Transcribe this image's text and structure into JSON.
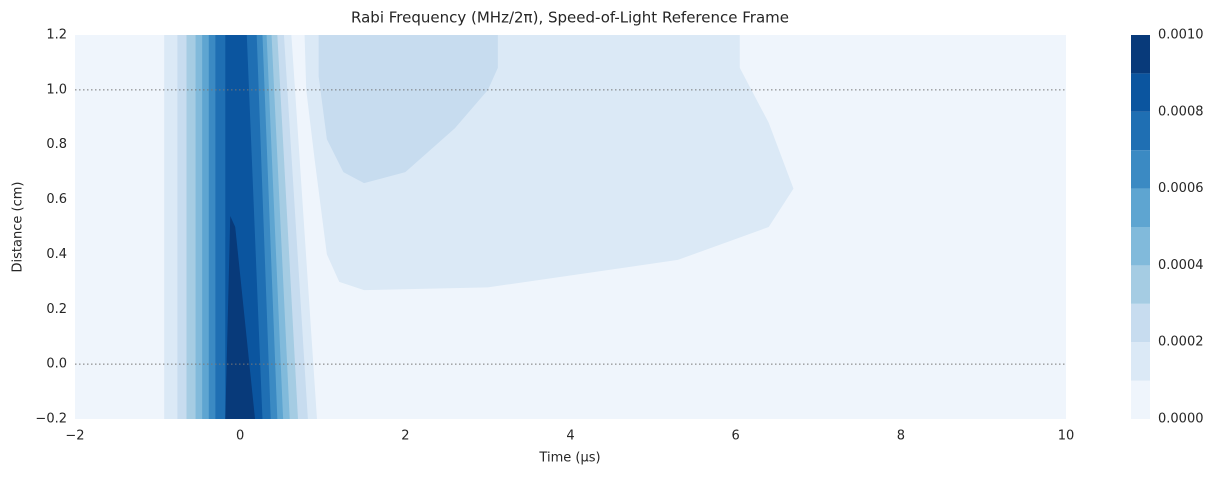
{
  "chart_data": {
    "type": "contourf",
    "title": "Rabi Frequency (MHz/2π), Speed-of-Light Reference Frame",
    "xlabel": "Time (μs)",
    "ylabel": "Distance (cm)",
    "xlim": [
      -2,
      10
    ],
    "ylim": [
      -0.2,
      1.2
    ],
    "xticks": [
      {
        "value": -2,
        "label": "−2"
      },
      0,
      2,
      4,
      6,
      8,
      10
    ],
    "yticks": [
      {
        "value": -0.2,
        "label": "−0.2"
      },
      {
        "value": 0,
        "label": "0.0"
      },
      {
        "value": 0.2,
        "label": "0.2"
      },
      {
        "value": 0.4,
        "label": "0.4"
      },
      {
        "value": 0.6,
        "label": "0.6"
      },
      {
        "value": 0.8,
        "label": "0.8"
      },
      {
        "value": 1.0,
        "label": "1.0"
      },
      {
        "value": 1.2,
        "label": "1.2"
      }
    ],
    "hlines": [
      0,
      1.0
    ],
    "levels": [
      0,
      0.0001,
      0.0002,
      0.0003,
      0.0004,
      0.0005,
      0.0006,
      0.0007,
      0.0008,
      0.0009,
      0.001
    ],
    "colors": [
      "#eff5fc",
      "#dbe9f6",
      "#c7dcef",
      "#a5cce3",
      "#81badb",
      "#5ea5d1",
      "#3b8ac3",
      "#1f6fb3",
      "#0b559f",
      "#083a7a"
    ],
    "colorbar_ticks": [
      {
        "value": 0,
        "label": "0.0000"
      },
      {
        "value": 0.0002,
        "label": "0.0002"
      },
      {
        "value": 0.0004,
        "label": "0.0004"
      },
      {
        "value": 0.0006,
        "label": "0.0006"
      },
      {
        "value": 0.0008,
        "label": "0.0008"
      },
      {
        "value": 0.001,
        "label": "0.0010"
      }
    ],
    "regions": [
      {
        "level": 0.0001,
        "points": [
          [
            0.78,
            1.2
          ],
          [
            0.8,
            1.0
          ],
          [
            0.9,
            0.75
          ],
          [
            1.05,
            0.4
          ],
          [
            1.2,
            0.3
          ],
          [
            1.5,
            0.27
          ],
          [
            3.0,
            0.28
          ],
          [
            5.3,
            0.38
          ],
          [
            6.4,
            0.5
          ],
          [
            6.7,
            0.64
          ],
          [
            6.4,
            0.88
          ],
          [
            6.05,
            1.08
          ],
          [
            6.05,
            1.2
          ]
        ]
      },
      {
        "level": 0.0002,
        "points": [
          [
            0.95,
            1.2
          ],
          [
            0.95,
            1.05
          ],
          [
            1.05,
            0.82
          ],
          [
            1.25,
            0.7
          ],
          [
            1.5,
            0.66
          ],
          [
            2.0,
            0.7
          ],
          [
            2.6,
            0.86
          ],
          [
            3.0,
            1.0
          ],
          [
            3.12,
            1.08
          ],
          [
            3.12,
            1.2
          ]
        ]
      },
      {
        "level": 0.0001,
        "points": [
          [
            -0.92,
            -0.2
          ],
          [
            -0.92,
            1.2
          ],
          [
            0.62,
            1.2
          ],
          [
            0.93,
            -0.2
          ]
        ]
      },
      {
        "level": 0.0002,
        "points": [
          [
            -0.76,
            -0.2
          ],
          [
            -0.76,
            1.2
          ],
          [
            0.53,
            1.2
          ],
          [
            0.82,
            -0.2
          ]
        ]
      },
      {
        "level": 0.0003,
        "points": [
          [
            -0.65,
            -0.2
          ],
          [
            -0.65,
            1.2
          ],
          [
            0.45,
            1.2
          ],
          [
            0.7,
            -0.2
          ]
        ]
      },
      {
        "level": 0.0004,
        "points": [
          [
            -0.54,
            -0.2
          ],
          [
            -0.54,
            1.2
          ],
          [
            0.38,
            1.2
          ],
          [
            0.6,
            -0.2
          ]
        ]
      },
      {
        "level": 0.0005,
        "points": [
          [
            -0.46,
            -0.2
          ],
          [
            -0.46,
            1.2
          ],
          [
            0.32,
            1.2
          ],
          [
            0.52,
            -0.2
          ]
        ]
      },
      {
        "level": 0.0006,
        "points": [
          [
            -0.38,
            -0.2
          ],
          [
            -0.38,
            1.2
          ],
          [
            0.27,
            1.2
          ],
          [
            0.45,
            -0.2
          ]
        ]
      },
      {
        "level": 0.0007,
        "points": [
          [
            -0.3,
            -0.2
          ],
          [
            -0.3,
            1.2
          ],
          [
            0.2,
            1.2
          ],
          [
            0.37,
            -0.2
          ]
        ]
      },
      {
        "level": 0.0008,
        "points": [
          [
            -0.18,
            -0.2
          ],
          [
            -0.18,
            1.2
          ],
          [
            0.08,
            1.2
          ],
          [
            0.27,
            -0.2
          ]
        ]
      },
      {
        "level": 0.0009,
        "points": [
          [
            -0.18,
            -0.2
          ],
          [
            -0.12,
            0.54
          ],
          [
            -0.06,
            0.5
          ],
          [
            0.18,
            -0.2
          ]
        ]
      }
    ]
  }
}
